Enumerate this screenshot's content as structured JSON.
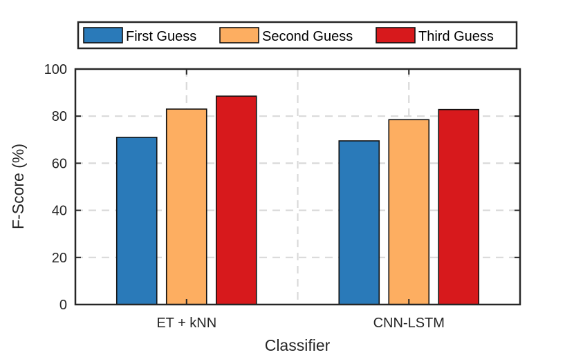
{
  "chart_data": {
    "type": "bar",
    "categories": [
      "ET + kNN",
      "CNN-LSTM"
    ],
    "series": [
      {
        "name": "First Guess",
        "values": [
          71,
          69.5
        ],
        "color": "#2a7ab9"
      },
      {
        "name": "Second Guess",
        "values": [
          83,
          78.5
        ],
        "color": "#fdae61"
      },
      {
        "name": "Third Guess",
        "values": [
          88.5,
          82.8
        ],
        "color": "#d7191c"
      }
    ],
    "xlabel": "Classifier",
    "ylabel": "F-Score (%)",
    "ylim": [
      0,
      100
    ],
    "yticks": [
      0,
      20,
      40,
      60,
      80,
      100
    ],
    "grid": true,
    "legend_placement": "top"
  }
}
